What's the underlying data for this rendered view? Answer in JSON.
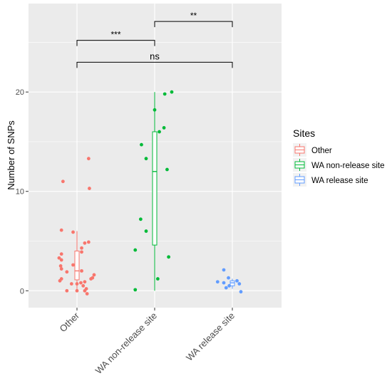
{
  "chart_data": {
    "type": "boxplot-jitter",
    "title": "",
    "xlabel": "",
    "ylabel": "Number of SNPs",
    "categories": [
      "Other",
      "WA non-release site",
      "WA release site"
    ],
    "ylim": [
      -1.7,
      28.9
    ],
    "yticks": [
      0,
      10,
      20
    ],
    "grid": true,
    "legend": {
      "title": "Sites",
      "placement": "right",
      "entries": [
        "Other",
        "WA non-release site",
        "WA release site"
      ]
    },
    "colors": {
      "Other": "#F8766D",
      "WA non-release site": "#00BA38",
      "WA release site": "#619CFF"
    },
    "boxes": [
      {
        "category": "Other",
        "whisker_low": 0,
        "q1": 1.1,
        "median": 2.0,
        "q3": 4.0,
        "whisker_high": 6.0
      },
      {
        "category": "WA non-release site",
        "whisker_low": 0,
        "q1": 4.6,
        "median": 12.0,
        "q3": 16.0,
        "whisker_high": 20.0
      },
      {
        "category": "WA release site",
        "whisker_low": 0.2,
        "q1": 0.5,
        "median": 0.8,
        "q3": 1.0,
        "whisker_high": 1.2
      }
    ],
    "points": [
      {
        "category": "Other",
        "jitter": -0.18,
        "y": 11.0
      },
      {
        "category": "Other",
        "jitter": 0.15,
        "y": 13.3
      },
      {
        "category": "Other",
        "jitter": 0.16,
        "y": 10.3
      },
      {
        "category": "Other",
        "jitter": -0.2,
        "y": 6.1
      },
      {
        "category": "Other",
        "jitter": -0.05,
        "y": 5.9
      },
      {
        "category": "Other",
        "jitter": 0.15,
        "y": 4.9
      },
      {
        "category": "Other",
        "jitter": 0.1,
        "y": 4.8
      },
      {
        "category": "Other",
        "jitter": 0.06,
        "y": 4.3
      },
      {
        "category": "Other",
        "jitter": 0.06,
        "y": 3.9
      },
      {
        "category": "Other",
        "jitter": -0.2,
        "y": 3.7
      },
      {
        "category": "Other",
        "jitter": -0.23,
        "y": 3.3
      },
      {
        "category": "Other",
        "jitter": -0.2,
        "y": 3.1
      },
      {
        "category": "Other",
        "jitter": -0.05,
        "y": 2.6
      },
      {
        "category": "Other",
        "jitter": -0.21,
        "y": 2.5
      },
      {
        "category": "Other",
        "jitter": -0.2,
        "y": 2.2
      },
      {
        "category": "Other",
        "jitter": 0.06,
        "y": 2.0
      },
      {
        "category": "Other",
        "jitter": -0.13,
        "y": 1.9
      },
      {
        "category": "Other",
        "jitter": 0.22,
        "y": 1.6
      },
      {
        "category": "Other",
        "jitter": 0.2,
        "y": 1.3
      },
      {
        "category": "Other",
        "jitter": -0.2,
        "y": 1.2
      },
      {
        "category": "Other",
        "jitter": 0.18,
        "y": 1.2
      },
      {
        "category": "Other",
        "jitter": -0.22,
        "y": 1.0
      },
      {
        "category": "Other",
        "jitter": 0.1,
        "y": 0.9
      },
      {
        "category": "Other",
        "jitter": 0.05,
        "y": 0.8
      },
      {
        "category": "Other",
        "jitter": 0.0,
        "y": 0.7
      },
      {
        "category": "Other",
        "jitter": 0.08,
        "y": 0.5
      },
      {
        "category": "Other",
        "jitter": -0.07,
        "y": 0.7
      },
      {
        "category": "Other",
        "jitter": 0.12,
        "y": 0.2
      },
      {
        "category": "Other",
        "jitter": -0.13,
        "y": 0.0
      },
      {
        "category": "Other",
        "jitter": 0.0,
        "y": 0.0
      },
      {
        "category": "Other",
        "jitter": 0.1,
        "y": 0.0
      },
      {
        "category": "Other",
        "jitter": 0.13,
        "y": -0.3
      },
      {
        "category": "WA non-release site",
        "jitter": 0.22,
        "y": 20.0
      },
      {
        "category": "WA non-release site",
        "jitter": 0.13,
        "y": 19.8
      },
      {
        "category": "WA non-release site",
        "jitter": 0.0,
        "y": 18.2
      },
      {
        "category": "WA non-release site",
        "jitter": 0.12,
        "y": 16.4
      },
      {
        "category": "WA non-release site",
        "jitter": 0.06,
        "y": 16.0
      },
      {
        "category": "WA non-release site",
        "jitter": -0.17,
        "y": 14.7
      },
      {
        "category": "WA non-release site",
        "jitter": -0.11,
        "y": 13.3
      },
      {
        "category": "WA non-release site",
        "jitter": 0.16,
        "y": 12.2
      },
      {
        "category": "WA non-release site",
        "jitter": -0.18,
        "y": 7.2
      },
      {
        "category": "WA non-release site",
        "jitter": -0.11,
        "y": 6.0
      },
      {
        "category": "WA non-release site",
        "jitter": -0.25,
        "y": 4.1
      },
      {
        "category": "WA non-release site",
        "jitter": 0.18,
        "y": 3.4
      },
      {
        "category": "WA non-release site",
        "jitter": 0.04,
        "y": 1.2
      },
      {
        "category": "WA non-release site",
        "jitter": -0.25,
        "y": 0.1
      },
      {
        "category": "WA release site",
        "jitter": -0.11,
        "y": 2.1
      },
      {
        "category": "WA release site",
        "jitter": -0.05,
        "y": 1.3
      },
      {
        "category": "WA release site",
        "jitter": 0.06,
        "y": 1.0
      },
      {
        "category": "WA release site",
        "jitter": -0.19,
        "y": 0.9
      },
      {
        "category": "WA release site",
        "jitter": -0.11,
        "y": 0.8
      },
      {
        "category": "WA release site",
        "jitter": 0.09,
        "y": 0.7
      },
      {
        "category": "WA release site",
        "jitter": -0.04,
        "y": 0.5
      },
      {
        "category": "WA release site",
        "jitter": -0.08,
        "y": 0.3
      },
      {
        "category": "WA release site",
        "jitter": 0.11,
        "y": -0.1
      }
    ],
    "annotations": [
      {
        "label": "***",
        "from": "Other",
        "to": "WA non-release site",
        "y": 25.2
      },
      {
        "label": "**",
        "from": "WA non-release site",
        "to": "WA release site",
        "y": 27.1
      },
      {
        "label": "ns",
        "from": "Other",
        "to": "WA release site",
        "y": 23.0
      }
    ]
  }
}
